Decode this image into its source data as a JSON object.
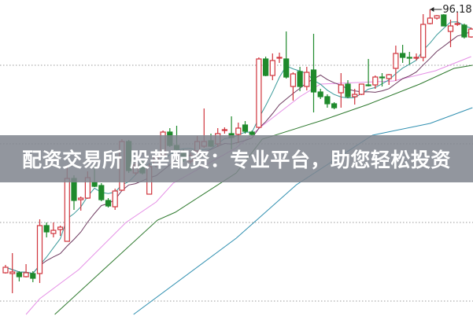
{
  "banner": {
    "text": "配资交易所 股莘配资：专业平台，助您轻松投资"
  },
  "chart_data": {
    "type": "candlestick",
    "title": "",
    "xlabel": "",
    "ylabel": "",
    "ylim": [
      57.18,
      97.38
    ],
    "grid": {
      "horizontal": true,
      "style": "dotted",
      "levels": [
        89.08,
        79.08,
        69.08,
        59.08
      ]
    },
    "annotation": {
      "text": "96.18",
      "candle": 63,
      "value": 96.18
    },
    "colors": {
      "up": "#d0343c",
      "down": "#1f8a2c",
      "ma5": "#3a9a9a",
      "ma10": "#6e3a60",
      "ma20": "#e58fe6",
      "ma30": "#2f7a2f",
      "ma60": "#2f8fb0",
      "grid": "#999999"
    },
    "ohlc": [
      [
        62.68,
        63.68,
        62.58,
        63.38
      ],
      [
        62.58,
        65.18,
        60.08,
        62.78
      ],
      [
        62.68,
        62.88,
        61.58,
        62.18
      ],
      [
        62.18,
        63.78,
        62.08,
        62.68
      ],
      [
        62.58,
        62.88,
        61.48,
        61.98
      ],
      [
        62.58,
        69.48,
        61.38,
        68.68
      ],
      [
        68.68,
        69.08,
        67.18,
        67.88
      ],
      [
        67.68,
        69.08,
        67.18,
        68.08
      ],
      [
        68.18,
        68.68,
        67.38,
        68.48
      ],
      [
        66.68,
        76.18,
        66.68,
        74.68
      ],
      [
        74.68,
        75.08,
        70.68,
        71.88
      ],
      [
        71.98,
        72.38,
        70.58,
        72.18
      ],
      [
        72.18,
        75.58,
        72.08,
        74.78
      ],
      [
        74.18,
        76.38,
        73.58,
        73.68
      ],
      [
        73.78,
        74.08,
        71.78,
        71.98
      ],
      [
        71.88,
        72.18,
        70.98,
        71.18
      ],
      [
        71.08,
        73.38,
        70.68,
        73.08
      ],
      [
        73.18,
        79.68,
        73.08,
        79.38
      ],
      [
        79.38,
        79.58,
        75.38,
        75.68
      ],
      [
        75.38,
        76.88,
        75.08,
        76.38
      ],
      [
        76.68,
        77.08,
        75.18,
        75.38
      ],
      [
        72.68,
        76.58,
        72.68,
        76.18
      ],
      [
        76.38,
        77.78,
        76.08,
        77.38
      ],
      [
        77.68,
        80.78,
        77.58,
        80.58
      ],
      [
        80.58,
        81.08,
        78.68,
        78.88
      ],
      [
        78.88,
        81.38,
        77.18,
        78.38
      ],
      [
        77.88,
        78.38,
        76.78,
        77.08
      ],
      [
        76.88,
        77.98,
        76.58,
        77.58
      ],
      [
        78.18,
        80.08,
        77.68,
        79.38
      ],
      [
        78.78,
        83.58,
        78.58,
        79.38
      ],
      [
        79.48,
        80.38,
        78.68,
        78.78
      ],
      [
        79.08,
        81.08,
        78.68,
        80.38
      ],
      [
        80.78,
        81.18,
        80.38,
        80.88
      ],
      [
        80.38,
        82.58,
        78.38,
        79.88
      ],
      [
        80.28,
        81.78,
        79.18,
        81.08
      ],
      [
        81.48,
        81.98,
        80.38,
        80.68
      ],
      [
        80.58,
        80.78,
        80.08,
        80.28
      ],
      [
        81.18,
        90.08,
        81.08,
        89.88
      ],
      [
        89.88,
        90.18,
        87.68,
        87.78
      ],
      [
        87.78,
        90.58,
        87.18,
        89.68
      ],
      [
        89.98,
        90.68,
        89.38,
        90.08
      ],
      [
        89.88,
        93.38,
        87.38,
        87.58
      ],
      [
        86.38,
        88.18,
        84.58,
        87.98
      ],
      [
        88.28,
        88.88,
        85.78,
        86.38
      ],
      [
        86.38,
        88.88,
        85.88,
        88.18
      ],
      [
        88.48,
        93.08,
        83.08,
        85.68
      ],
      [
        85.68,
        86.08,
        84.78,
        85.08
      ],
      [
        85.08,
        85.38,
        83.68,
        84.18
      ],
      [
        84.18,
        84.38,
        83.48,
        83.68
      ],
      [
        85.58,
        88.08,
        83.68,
        86.58
      ],
      [
        86.68,
        87.18,
        84.88,
        85.08
      ],
      [
        85.08,
        86.08,
        84.08,
        85.38
      ],
      [
        85.38,
        86.68,
        85.28,
        86.68
      ],
      [
        86.58,
        89.88,
        86.38,
        86.48
      ],
      [
        86.58,
        87.78,
        86.08,
        87.58
      ],
      [
        87.58,
        88.08,
        86.38,
        87.48
      ],
      [
        87.38,
        87.98,
        86.58,
        87.88
      ],
      [
        88.68,
        91.58,
        87.08,
        90.58
      ],
      [
        90.58,
        91.68,
        89.38,
        90.08
      ],
      [
        90.08,
        90.78,
        89.18,
        89.98
      ],
      [
        89.98,
        90.58,
        89.68,
        90.08
      ],
      [
        90.08,
        95.58,
        89.58,
        94.28
      ],
      [
        94.38,
        96.18,
        94.28,
        95.08
      ],
      [
        95.08,
        95.48,
        94.88,
        95.38
      ],
      [
        95.48,
        95.58,
        94.08,
        94.08
      ],
      [
        93.38,
        94.88,
        91.38,
        94.08
      ],
      [
        94.28,
        95.88,
        94.08,
        94.38
      ],
      [
        94.18,
        94.38,
        92.48,
        92.68
      ],
      [
        92.68,
        93.88,
        92.58,
        93.68
      ]
    ],
    "moving_averages": {
      "ma20": [
        [
          4,
          57.38
        ],
        [
          6,
          59.38
        ],
        [
          11.7,
          63.08
        ],
        [
          18.6,
          69.08
        ],
        [
          23,
          71.68
        ],
        [
          25.5,
          74.08
        ],
        [
          34.7,
          78.58
        ],
        [
          38.5,
          81.38
        ],
        [
          44,
          85.08
        ],
        [
          47,
          86.68
        ],
        [
          57.7,
          87.08
        ],
        [
          63.8,
          88.38
        ],
        [
          69,
          90.18
        ]
      ],
      "ma30": [
        [
          8.2,
          57.38
        ],
        [
          23.2,
          69.38
        ],
        [
          25.8,
          70.38
        ],
        [
          34.7,
          75.38
        ],
        [
          38.5,
          79.68
        ],
        [
          47.3,
          82.08
        ],
        [
          53.9,
          84.08
        ],
        [
          61.5,
          86.68
        ],
        [
          66.5,
          88.68
        ],
        [
          69.2,
          89.08
        ]
      ],
      "ma60": [
        [
          19.7,
          57.38
        ],
        [
          34.7,
          67.08
        ],
        [
          43.5,
          73.88
        ],
        [
          54.6,
          80.18
        ],
        [
          63,
          81.68
        ],
        [
          69.2,
          83.68
        ]
      ]
    }
  }
}
